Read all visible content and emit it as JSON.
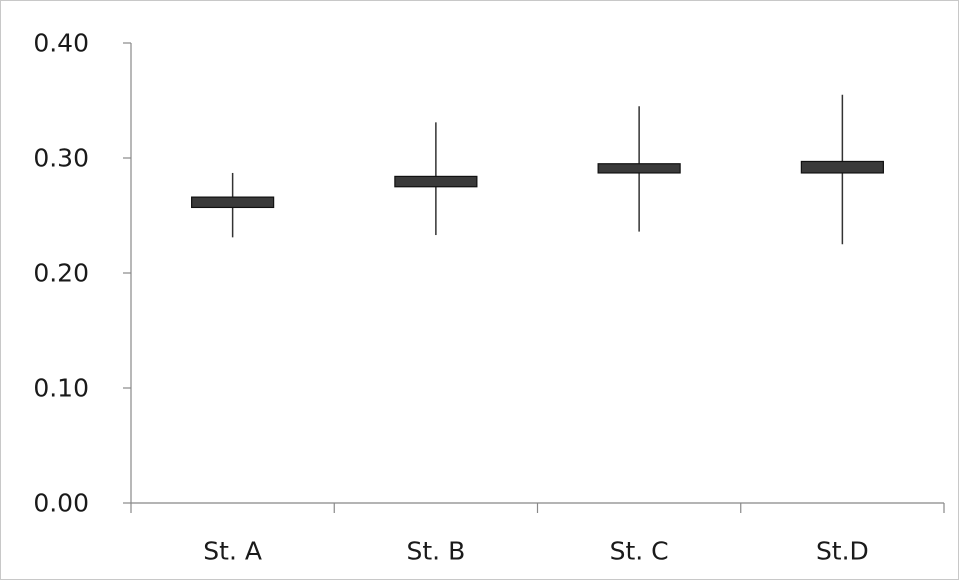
{
  "chart_data": {
    "type": "boxplot",
    "title": "",
    "xlabel": "",
    "ylabel": "",
    "ylim": [
      0,
      0.4
    ],
    "yticks": [
      "0.00",
      "0.10",
      "0.20",
      "0.30",
      "0.40"
    ],
    "ytick_values": [
      0,
      0.1,
      0.2,
      0.3,
      0.4
    ],
    "categories": [
      "St. A",
      "St. B",
      "St. C",
      "St.D"
    ],
    "series": [
      {
        "values": [
          {
            "min": 0.231,
            "q1": 0.257,
            "q3": 0.266,
            "max": 0.287
          },
          {
            "min": 0.233,
            "q1": 0.275,
            "q3": 0.284,
            "max": 0.331
          },
          {
            "min": 0.236,
            "q1": 0.287,
            "q3": 0.295,
            "max": 0.345
          },
          {
            "min": 0.225,
            "q1": 0.287,
            "q3": 0.297,
            "max": 0.355
          }
        ]
      }
    ],
    "grid": false,
    "colors": {
      "box_fill": "#3a3a3a",
      "box_stroke": "#111111",
      "whisker": "#333333",
      "axis": "#888888"
    }
  }
}
